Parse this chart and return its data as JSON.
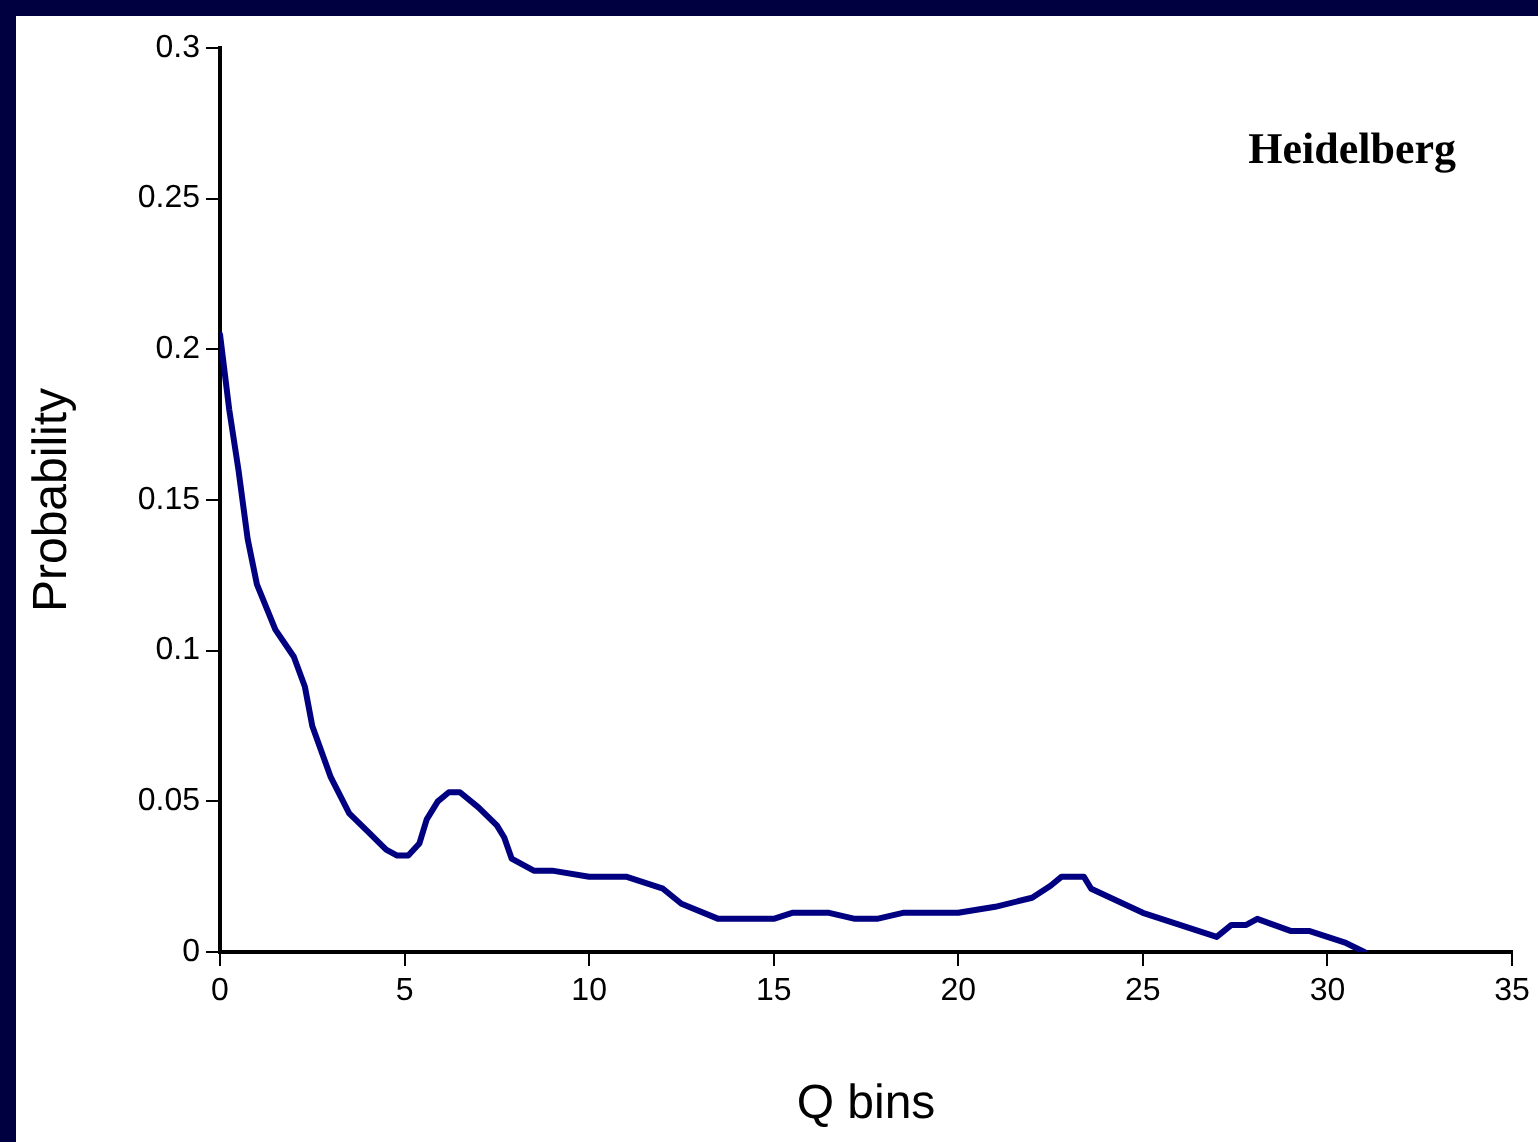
{
  "chart_data": {
    "type": "line",
    "xlabel": "Q bins",
    "ylabel": "Probability",
    "annotations": [
      "Heidelberg"
    ],
    "x": [
      0,
      0.25,
      0.5,
      0.75,
      1,
      1.5,
      2,
      2.3,
      2.5,
      3,
      3.5,
      4,
      4.5,
      4.8,
      5.1,
      5.4,
      5.6,
      5.9,
      6.2,
      6.5,
      7,
      7.5,
      7.7,
      7.9,
      8.5,
      9,
      10,
      11,
      12,
      12.5,
      13.5,
      15,
      15.5,
      16.5,
      17.2,
      17.8,
      18.5,
      20,
      21,
      22,
      22.5,
      22.8,
      23.4,
      23.6,
      25,
      27,
      27.4,
      27.8,
      28.1,
      29,
      29.5,
      30.5,
      31
    ],
    "series": [
      {
        "color": "#000080",
        "values": [
          0.205,
          0.18,
          0.16,
          0.137,
          0.122,
          0.107,
          0.098,
          0.088,
          0.075,
          0.058,
          0.046,
          0.04,
          0.034,
          0.032,
          0.032,
          0.036,
          0.044,
          0.05,
          0.053,
          0.053,
          0.048,
          0.042,
          0.038,
          0.031,
          0.027,
          0.027,
          0.025,
          0.025,
          0.021,
          0.016,
          0.011,
          0.011,
          0.013,
          0.013,
          0.011,
          0.011,
          0.013,
          0.013,
          0.015,
          0.018,
          0.022,
          0.025,
          0.025,
          0.021,
          0.013,
          0.005,
          0.009,
          0.009,
          0.011,
          0.007,
          0.007,
          0.003,
          0
        ]
      }
    ],
    "xlim": [
      0,
      35
    ],
    "xticks": [
      0,
      5,
      10,
      15,
      20,
      25,
      30,
      35
    ],
    "ylim": [
      0,
      0.3
    ],
    "yticks": [
      0,
      0.05,
      0.1,
      0.15,
      0.2,
      0.25,
      0.3
    ],
    "marker": "none",
    "line_style": "solid"
  }
}
